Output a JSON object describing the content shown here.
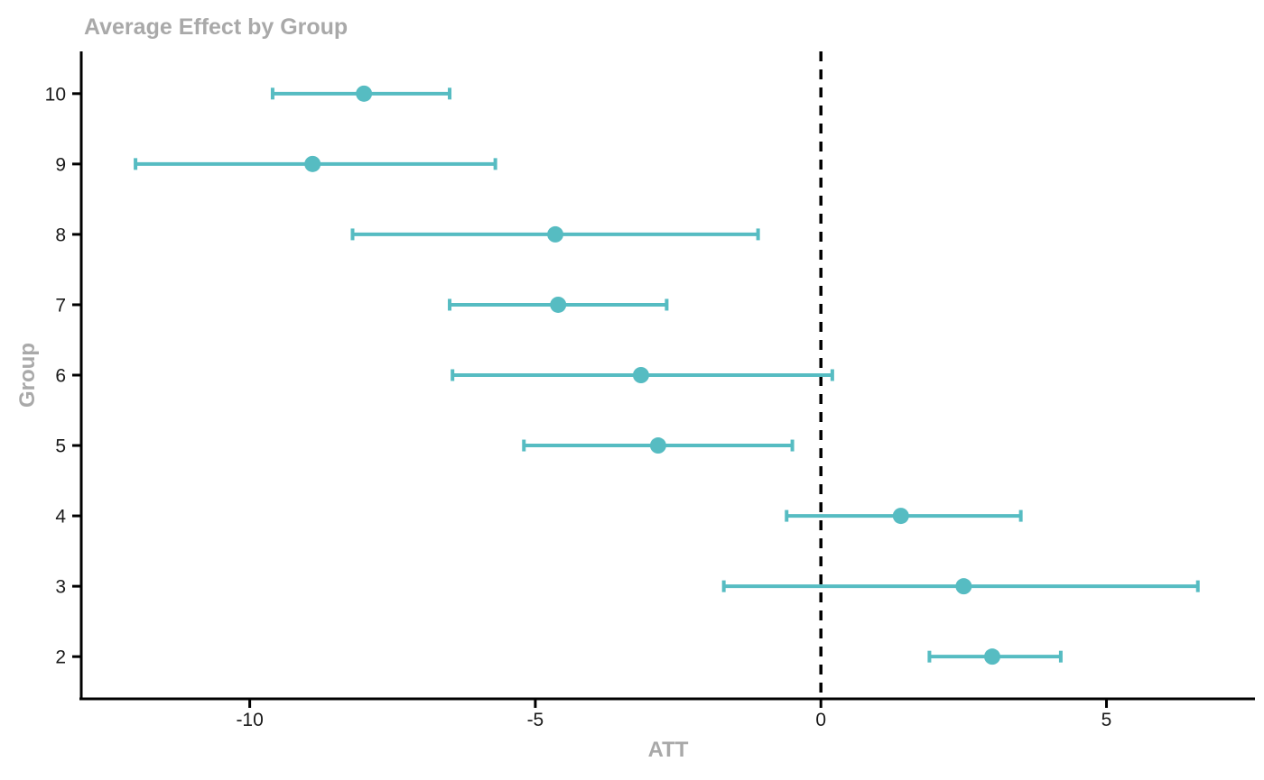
{
  "chart_data": {
    "type": "scatter",
    "subtype": "pointrange",
    "title": "Average Effect by Group",
    "xlabel": "ATT",
    "ylabel": "Group",
    "x_ticks": [
      -10,
      -5,
      0,
      5
    ],
    "xlim": [
      -12.95,
      7.6
    ],
    "band_padding": 0.6,
    "grid": false,
    "legend": "none",
    "reference_line_x": 0,
    "colors": {
      "point_and_ci": "#56bcc2",
      "axis": "#000000",
      "tick_label": "#1a1a1a",
      "title_and_axis_labels": "#a9a9a9",
      "reference_line": "#000000",
      "background": "#ffffff"
    },
    "points": [
      {
        "group": "10",
        "att": -8.0,
        "ci_low": -9.6,
        "ci_high": -6.5
      },
      {
        "group": "9",
        "att": -8.9,
        "ci_low": -12.0,
        "ci_high": -5.7
      },
      {
        "group": "8",
        "att": -4.65,
        "ci_low": -8.2,
        "ci_high": -1.1
      },
      {
        "group": "7",
        "att": -4.6,
        "ci_low": -6.5,
        "ci_high": -2.7
      },
      {
        "group": "6",
        "att": -3.15,
        "ci_low": -6.45,
        "ci_high": 0.2
      },
      {
        "group": "5",
        "att": -2.85,
        "ci_low": -5.2,
        "ci_high": -0.5
      },
      {
        "group": "4",
        "att": 1.4,
        "ci_low": -0.6,
        "ci_high": 3.5
      },
      {
        "group": "3",
        "att": 2.5,
        "ci_low": -1.7,
        "ci_high": 6.6
      },
      {
        "group": "2",
        "att": 3.0,
        "ci_low": 1.9,
        "ci_high": 4.2
      }
    ]
  }
}
